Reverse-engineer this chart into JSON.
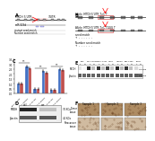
{
  "background": "#f0f0f0",
  "bar_values_blue": [
    1.0,
    2.8,
    0.5,
    2.3,
    0.4,
    2.5
  ],
  "bar_values_pink": [
    1.0,
    2.6,
    0.45,
    2.1,
    0.42,
    2.4
  ],
  "bar_color_blue": "#4472c4",
  "bar_color_pink": "#c0504d",
  "ylim": [
    0,
    3.5
  ],
  "ytick_labels": [
    "0",
    "0.5",
    "1.0",
    "1.5",
    "2.0",
    "2.5",
    "3.0",
    "3.5"
  ],
  "wb_e_cols": 14,
  "ihc_tan": "#c8a07a",
  "ihc_brown": "#8b6040",
  "panel_a_line_color": "#222222",
  "panel_b_box_color": "#444444"
}
